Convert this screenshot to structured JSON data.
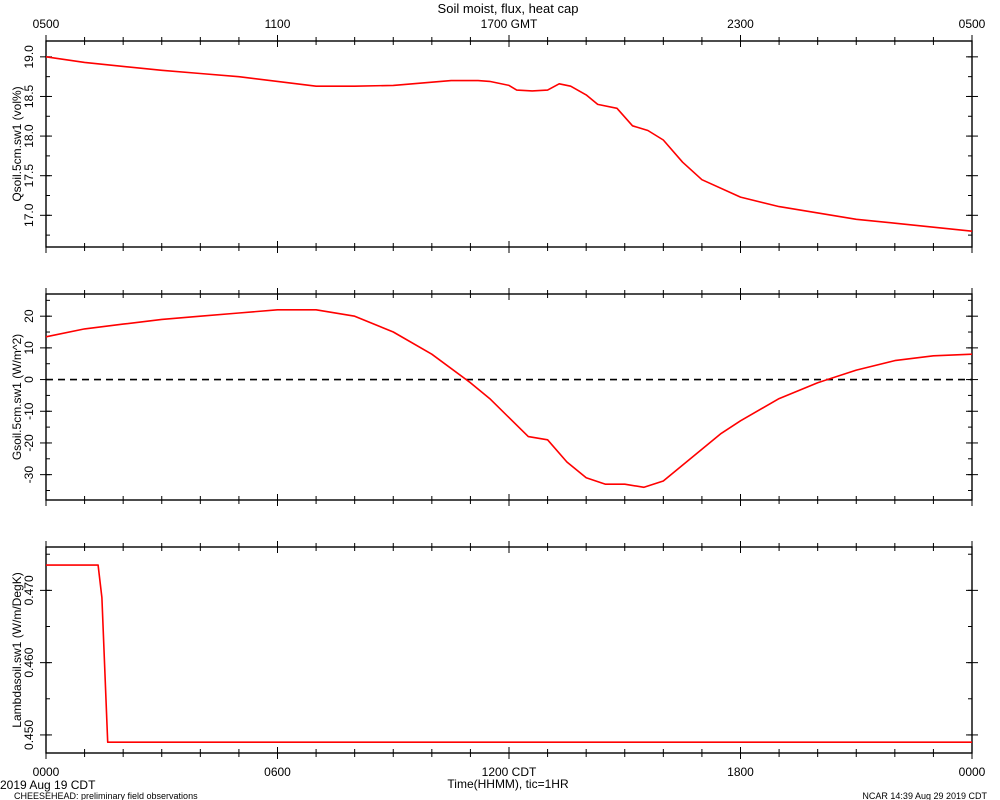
{
  "title": "Soil moist, flux, heat cap",
  "top_axis_ticks": [
    "0500",
    "1100",
    "1700 GMT",
    "2300",
    "0500"
  ],
  "bottom_axis_ticks": [
    "0000",
    "0600",
    "1200 CDT",
    "1800",
    "0000"
  ],
  "xlabel": "Time(HHMM), tic=1HR",
  "date_label": "2019 Aug 19 CDT",
  "footer_left": "CHEESEHEAD: preliminary field observations",
  "footer_right": "NCAR 14:39 Aug 29 2019 CDT",
  "colors": {
    "series": "#ff0000",
    "axis": "#000000",
    "zero_line": "#000000"
  },
  "chart_data": [
    {
      "type": "line",
      "ylabel": "Qsoil.5cm.sw1  (vol%)",
      "ylim": [
        16.6,
        19.2
      ],
      "y_ticks": [
        "19.0",
        "18.5",
        "18.0",
        "17.5",
        "17.0"
      ],
      "y_tick_values": [
        19.0,
        18.5,
        18.0,
        17.5,
        17.0
      ],
      "x_unit": "hours since 0000 CDT",
      "xlim": [
        0,
        24
      ],
      "series": [
        {
          "x": [
            0,
            1,
            2,
            3,
            4,
            5,
            6,
            7,
            8,
            9,
            10,
            10.5,
            11,
            11.2,
            11.5,
            12,
            12.2,
            12.6,
            13,
            13.3,
            13.6,
            14,
            14.3,
            14.8,
            15.2,
            15.6,
            16,
            16.5,
            17,
            18,
            19,
            20,
            21,
            22,
            23,
            24
          ],
          "y": [
            19.0,
            18.93,
            18.88,
            18.83,
            18.79,
            18.75,
            18.69,
            18.63,
            18.63,
            18.64,
            18.68,
            18.7,
            18.7,
            18.7,
            18.69,
            18.64,
            18.58,
            18.57,
            18.58,
            18.66,
            18.63,
            18.52,
            18.4,
            18.35,
            18.13,
            18.07,
            17.95,
            17.67,
            17.45,
            17.23,
            17.11,
            17.03,
            16.95,
            16.9,
            16.85,
            16.8
          ]
        }
      ]
    },
    {
      "type": "line",
      "ylabel": "Gsoil.5cm.sw1  (W/m^2)",
      "ylim": [
        -38,
        27
      ],
      "y_ticks": [
        "20",
        "10",
        "0",
        "-10",
        "-20",
        "-30"
      ],
      "y_tick_values": [
        20,
        10,
        0,
        -10,
        -20,
        -30
      ],
      "zero_line": 0,
      "x_unit": "hours since 0000 CDT",
      "xlim": [
        0,
        24
      ],
      "series": [
        {
          "x": [
            0,
            1,
            2,
            3,
            4,
            5,
            6,
            7,
            8,
            9,
            10,
            11,
            11.5,
            12,
            12.5,
            13,
            13.5,
            14,
            14.5,
            15,
            15.5,
            16,
            16.5,
            17,
            17.5,
            18,
            19,
            20,
            21,
            22,
            23,
            24
          ],
          "y": [
            13.5,
            16,
            17.5,
            19,
            20,
            21,
            22,
            22,
            20,
            15,
            8,
            -1,
            -6,
            -12,
            -18,
            -19,
            -26,
            -31,
            -33,
            -33,
            -34,
            -32,
            -27,
            -22,
            -17,
            -13,
            -6,
            -1,
            3,
            6,
            7.5,
            8
          ]
        }
      ]
    },
    {
      "type": "line",
      "ylabel": "Lambdasoil.sw1  (W/m/DegK)",
      "ylim": [
        0.4475,
        0.476
      ],
      "y_ticks": [
        "0.470",
        "0.460",
        "0.450"
      ],
      "y_tick_values": [
        0.47,
        0.46,
        0.45
      ],
      "x_unit": "hours since 0000 CDT",
      "xlim": [
        0,
        24
      ],
      "series": [
        {
          "x": [
            0,
            1.35,
            1.45,
            1.6,
            24
          ],
          "y": [
            0.4735,
            0.4735,
            0.469,
            0.449,
            0.449
          ]
        }
      ]
    }
  ]
}
